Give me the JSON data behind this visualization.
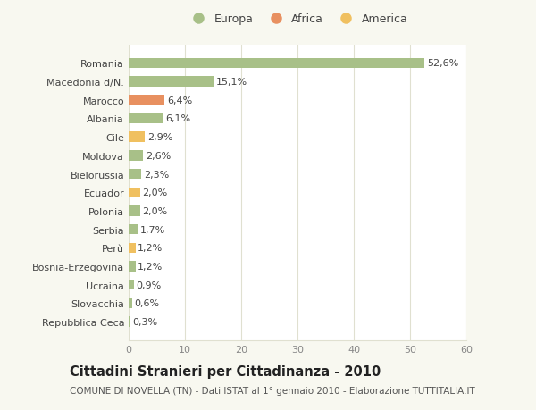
{
  "categories": [
    "Repubblica Ceca",
    "Slovacchia",
    "Ucraina",
    "Bosnia-Erzegovina",
    "Perù",
    "Serbia",
    "Polonia",
    "Ecuador",
    "Bielorussia",
    "Moldova",
    "Cile",
    "Albania",
    "Marocco",
    "Macedonia d/N.",
    "Romania"
  ],
  "values": [
    0.3,
    0.6,
    0.9,
    1.2,
    1.2,
    1.7,
    2.0,
    2.0,
    2.3,
    2.6,
    2.9,
    6.1,
    6.4,
    15.1,
    52.6
  ],
  "labels": [
    "0,3%",
    "0,6%",
    "0,9%",
    "1,2%",
    "1,2%",
    "1,7%",
    "2,0%",
    "2,0%",
    "2,3%",
    "2,6%",
    "2,9%",
    "6,1%",
    "6,4%",
    "15,1%",
    "52,6%"
  ],
  "colors": [
    "#a8c088",
    "#a8c088",
    "#a8c088",
    "#a8c088",
    "#f0c060",
    "#a8c088",
    "#a8c088",
    "#f0c060",
    "#a8c088",
    "#a8c088",
    "#f0c060",
    "#a8c088",
    "#e89060",
    "#a8c088",
    "#a8c088"
  ],
  "legend_labels": [
    "Europa",
    "Africa",
    "America"
  ],
  "legend_colors": [
    "#a8c088",
    "#e89060",
    "#f0c060"
  ],
  "title": "Cittadini Stranieri per Cittadinanza - 2010",
  "subtitle": "COMUNE DI NOVELLA (TN) - Dati ISTAT al 1° gennaio 2010 - Elaborazione TUTTITALIA.IT",
  "xlim": [
    0,
    60
  ],
  "xticks": [
    0,
    10,
    20,
    30,
    40,
    50,
    60
  ],
  "background_color": "#f8f8f0",
  "plot_background": "#ffffff",
  "grid_color": "#e0e0d0",
  "bar_height": 0.55,
  "title_fontsize": 10.5,
  "subtitle_fontsize": 7.5,
  "tick_fontsize": 8,
  "label_fontsize": 8,
  "legend_fontsize": 9
}
